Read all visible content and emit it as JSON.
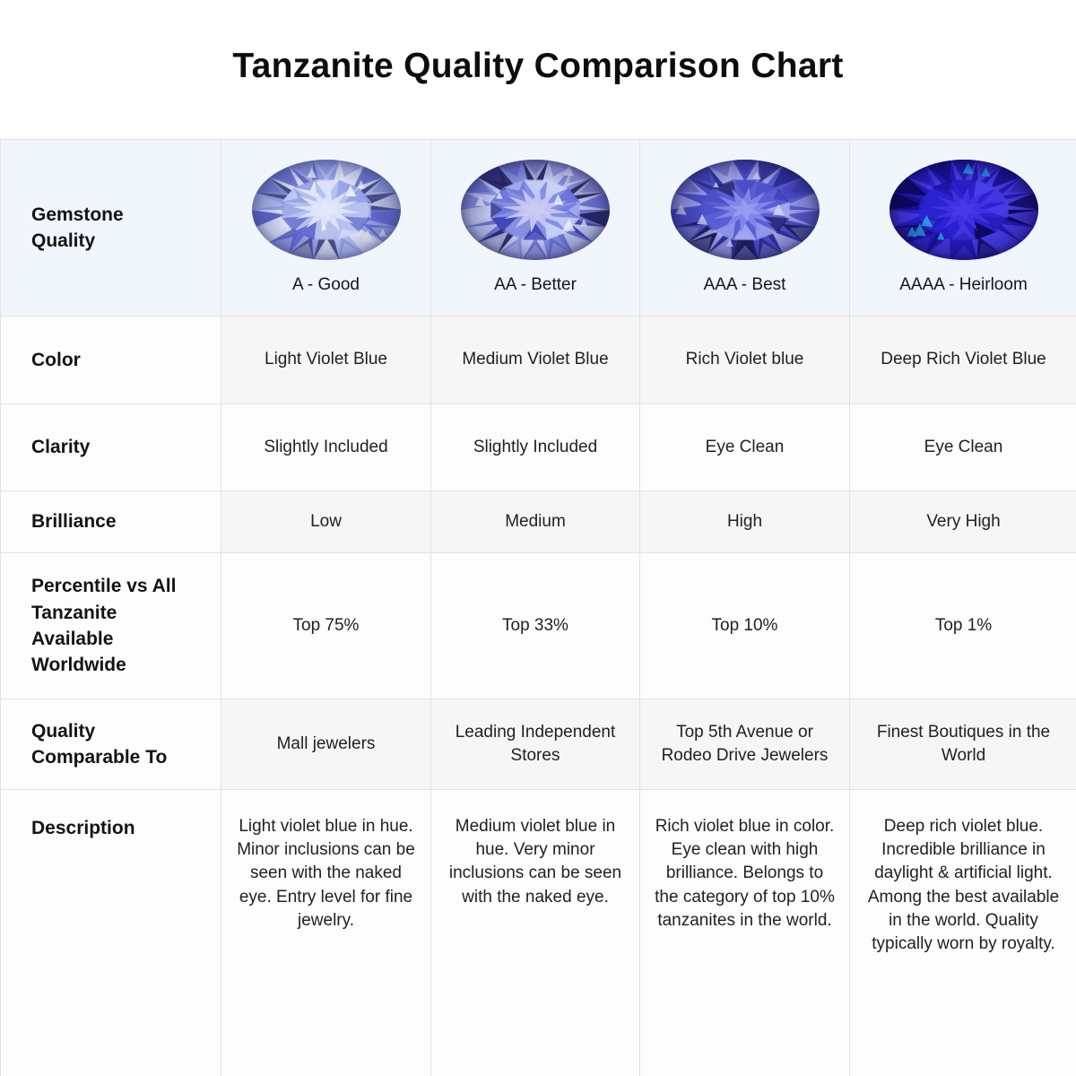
{
  "title": "Tanzanite Quality Comparison Chart",
  "table": {
    "corner_label": "Gemstone Quality",
    "grades": [
      {
        "label": "A - Good",
        "gem": {
          "base": "#b6c1ee",
          "light": "#e7ebfb",
          "mid": "#93a1e7",
          "deep": "#5c66cc",
          "dark": "#3a3f7e",
          "star": "#dde4fa",
          "sparkle": "#f6f8ff"
        }
      },
      {
        "label": "AA - Better",
        "gem": {
          "base": "#8490e2",
          "light": "#cdd5f7",
          "mid": "#6a74d9",
          "deep": "#3e41b2",
          "dark": "#23225c",
          "star": "#c7c6f4",
          "sparkle": "#eef1fe"
        }
      },
      {
        "label": "AAA - Best",
        "gem": {
          "base": "#5a5ed4",
          "light": "#a9adf1",
          "mid": "#4a4cc6",
          "deep": "#2e2d9a",
          "dark": "#191956",
          "star": "#8486ea",
          "sparkle": "#d6d9fb"
        }
      },
      {
        "label": "AAAA - Heirloom",
        "gem": {
          "base": "#2b22d0",
          "light": "#4d40e9",
          "mid": "#231ab6",
          "deep": "#150e88",
          "dark": "#0b0650",
          "star": "#4033e4",
          "sparkle": "#27b2f0"
        }
      }
    ],
    "rows": [
      {
        "label": "Color",
        "shaded": true,
        "values": [
          "Light Violet Blue",
          "Medium Violet Blue",
          "Rich Violet blue",
          "Deep Rich Violet Blue"
        ]
      },
      {
        "label": "Clarity",
        "shaded": false,
        "values": [
          "Slightly Included",
          "Slightly Included",
          "Eye Clean",
          "Eye Clean"
        ]
      },
      {
        "label": "Brilliance",
        "shaded": true,
        "values": [
          "Low",
          "Medium",
          "High",
          "Very High"
        ]
      },
      {
        "label": "Percentile vs All Tanzanite Available Worldwide",
        "shaded": false,
        "values": [
          "Top 75%",
          "Top 33%",
          "Top 10%",
          "Top 1%"
        ]
      },
      {
        "label": "Quality Comparable To",
        "shaded": true,
        "values": [
          "Mall jewelers",
          "Leading Independent Stores",
          "Top 5th Avenue or Rodeo Drive Jewelers",
          "Finest Boutiques in the World"
        ]
      },
      {
        "label": "Description",
        "shaded": false,
        "values": [
          "Light violet blue in hue. Minor inclusions can be seen with the naked eye. Entry level for fine jewelry.",
          "Medium violet blue in hue. Very minor inclusions can be seen with the naked eye.",
          "Rich violet blue in color. Eye clean with high brilliance. Belongs to the category of top 10% tanzanites in the world.",
          "Deep rich violet blue. Incredible brilliance in daylight & artificial light. Among the best available in the world. Quality typically worn by royalty."
        ]
      }
    ]
  },
  "colors": {
    "page_bg": "#ffffff",
    "header_row_bg": "#f1f5fc",
    "shaded_row_bg": "#f6f6f6",
    "plain_row_bg": "#fdfdfd",
    "border": "#e2e2e2",
    "title_text": "#0d0d0d",
    "body_text": "#212121"
  }
}
